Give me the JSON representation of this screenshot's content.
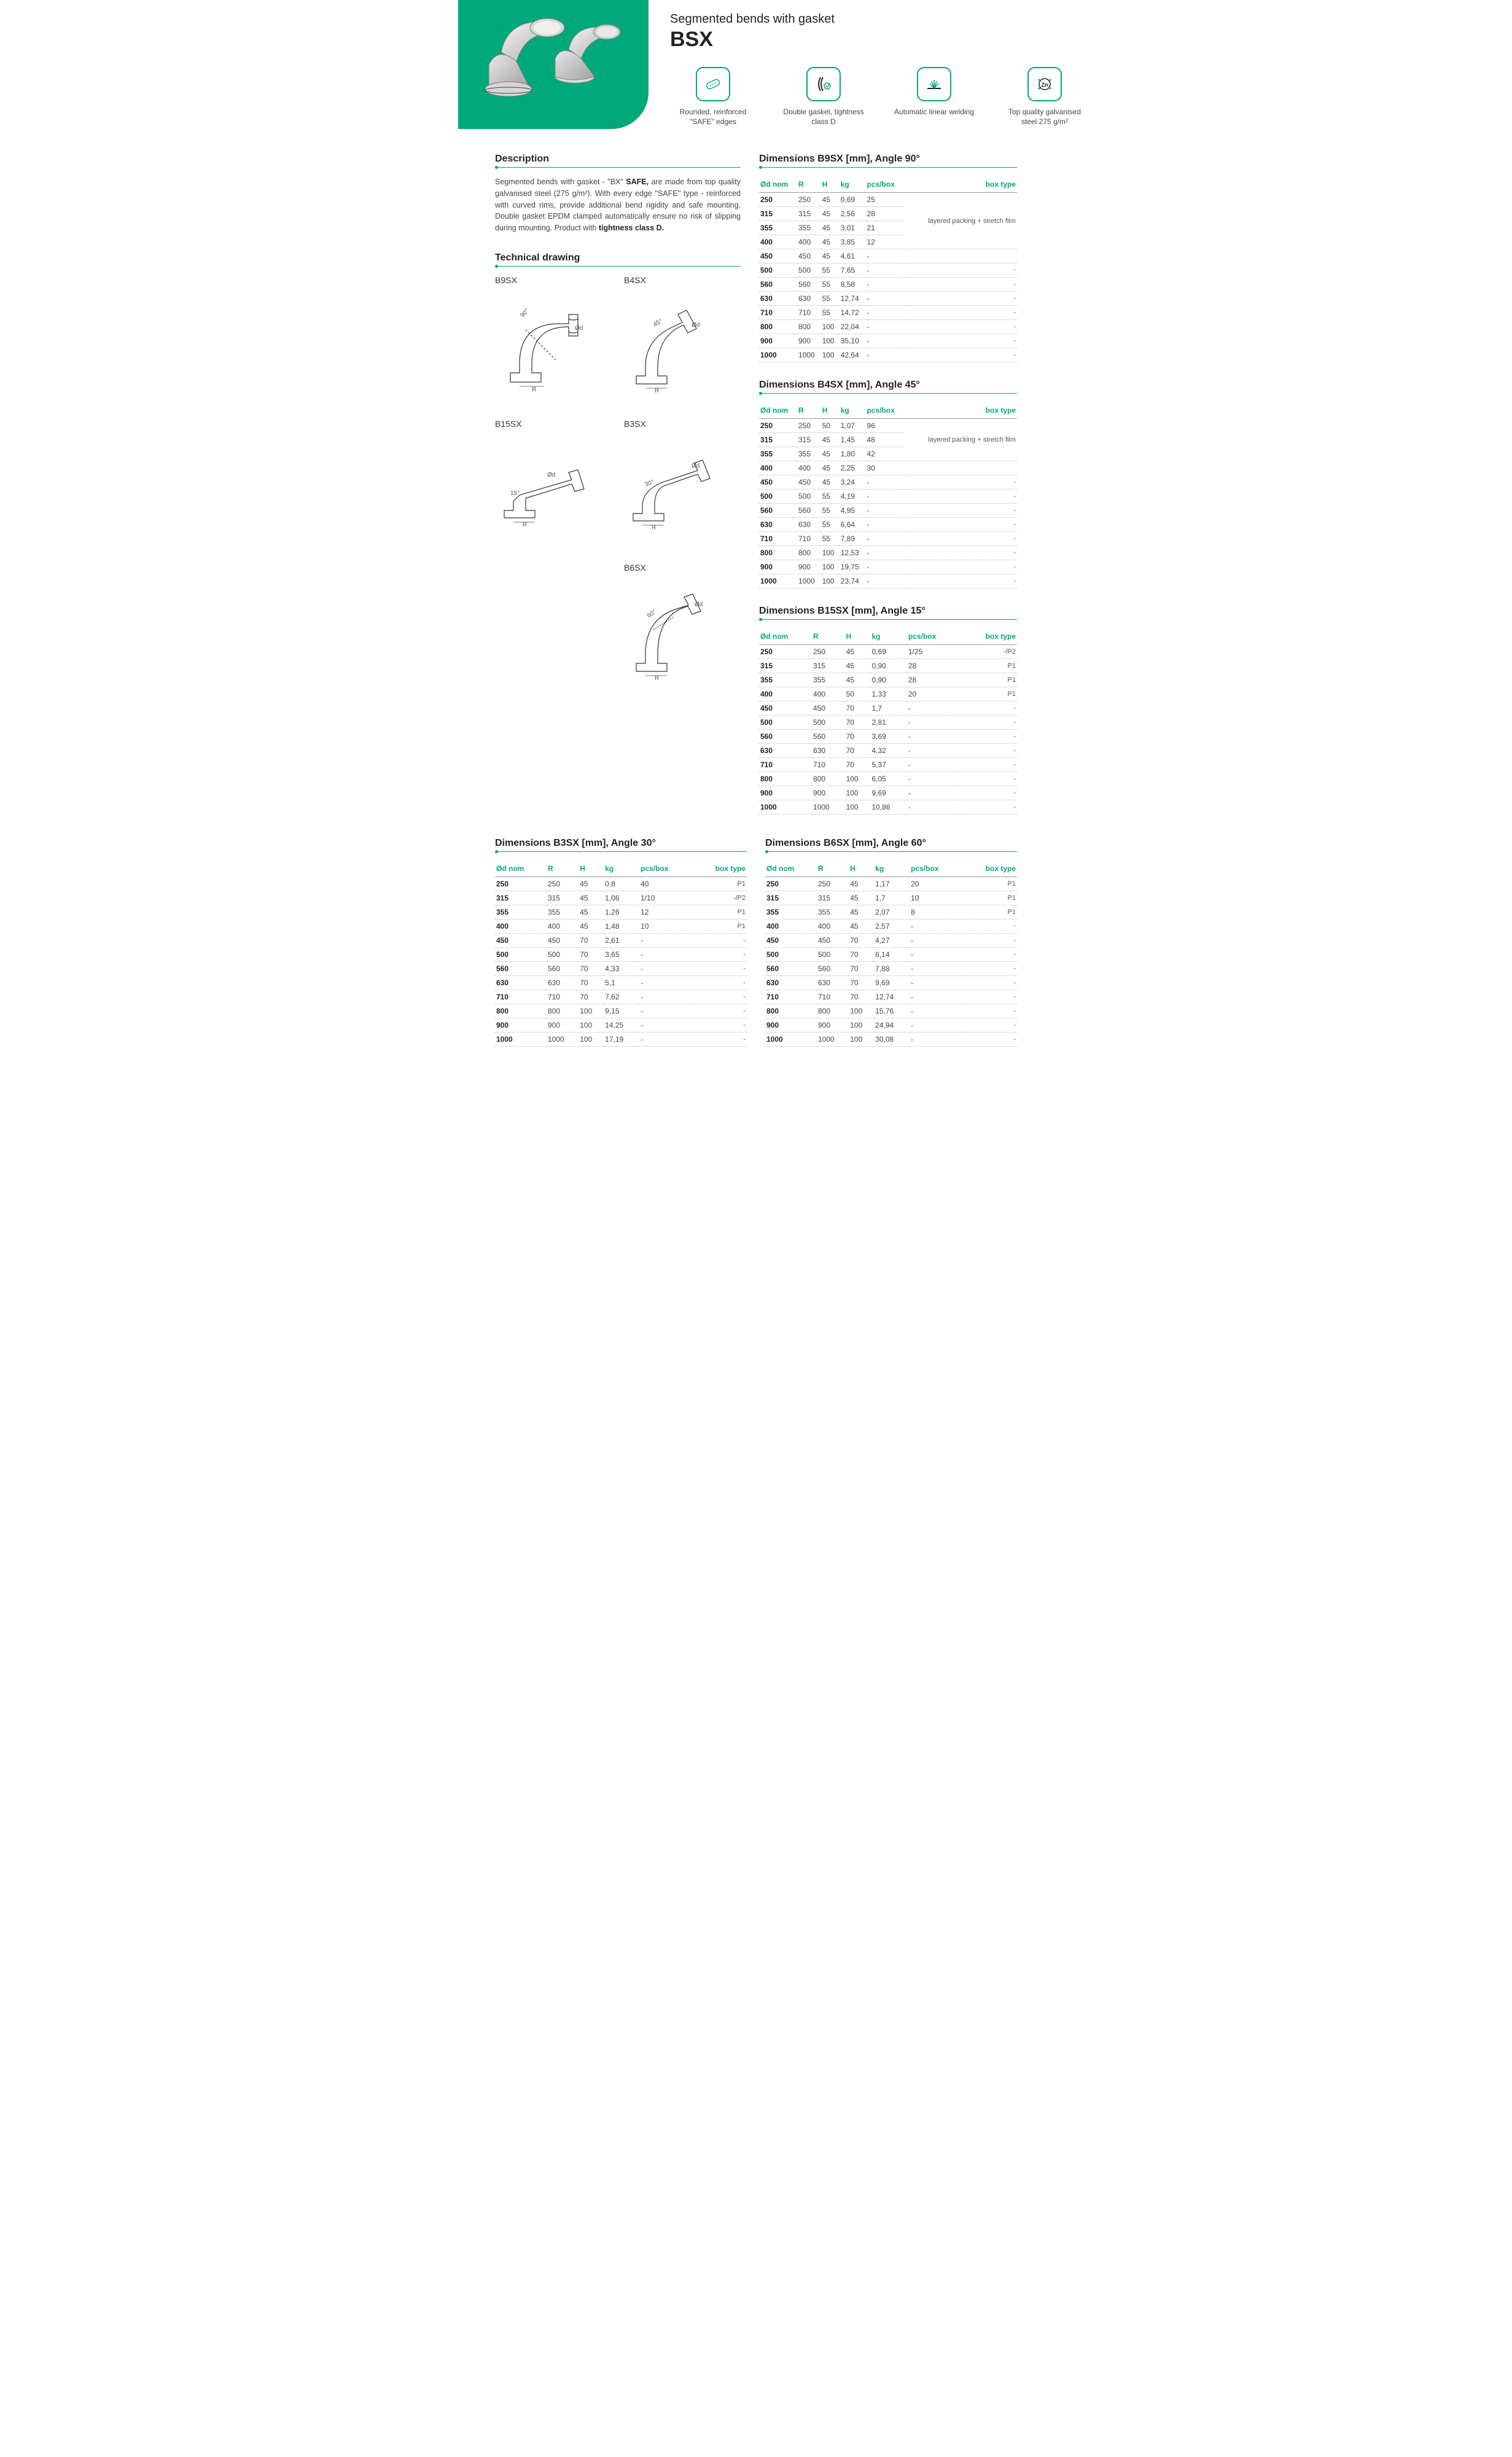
{
  "header": {
    "subtitle": "Segmented bends with gasket",
    "code": "BSX"
  },
  "features": [
    {
      "icon": "safe-edge",
      "text": "Rounded, reinforced \"SAFE\" edges"
    },
    {
      "icon": "gasket",
      "text": "Double gasket, tightness class D"
    },
    {
      "icon": "weld",
      "text": "Automatic linear welding"
    },
    {
      "icon": "zn",
      "text": "Top quality galvanised steel 275 g/m²"
    }
  ],
  "description": {
    "title": "Description",
    "body_pre": "Segmented bends with gasket - \"BX\" ",
    "body_bold1": "SAFE,",
    "body_mid": " are made from top quality galvanised steel (275 g/m²). With every edge \"SAFE'' type - reinforced with curved rims, provide additional bend rigidity and safe mounting. Double gasket EPDM clamped automatically ensure no risk of slipping during mounting. Product with ",
    "body_bold2": "tightness class D."
  },
  "tech_drawing_title": "Technical drawing",
  "drawings": [
    {
      "label": "B9SX",
      "angle": "90°"
    },
    {
      "label": "B4SX",
      "angle": "45°"
    },
    {
      "label": "B15SX",
      "angle": "15°"
    },
    {
      "label": "B3SX",
      "angle": "30°"
    },
    {
      "label": "B6SX",
      "angle": "60°"
    }
  ],
  "tables": {
    "headers": [
      "Ød nom",
      "R",
      "H",
      "kg",
      "pcs/box",
      "box type"
    ],
    "b9sx": {
      "title": "Dimensions B9SX [mm], Angle 90°",
      "box_span_text": "layered packing + stretch film",
      "rows": [
        [
          "250",
          "250",
          "45",
          "0,69",
          "25",
          ""
        ],
        [
          "315",
          "315",
          "45",
          "2,56",
          "28",
          ""
        ],
        [
          "355",
          "355",
          "45",
          "3,01",
          "21",
          ""
        ],
        [
          "400",
          "400",
          "45",
          "3,85",
          "12",
          ""
        ],
        [
          "450",
          "450",
          "45",
          "4,61",
          "-",
          ""
        ],
        [
          "500",
          "500",
          "55",
          "7,65",
          "-",
          "-"
        ],
        [
          "560",
          "560",
          "55",
          "8,58",
          "-",
          "-"
        ],
        [
          "630",
          "630",
          "55",
          "12,74",
          "-",
          "-"
        ],
        [
          "710",
          "710",
          "55",
          "14,72",
          "-",
          "-"
        ],
        [
          "800",
          "800",
          "100",
          "22,04",
          "-",
          "-"
        ],
        [
          "900",
          "900",
          "100",
          "35,10",
          "-",
          "-"
        ],
        [
          "1000",
          "1000",
          "100",
          "42,64",
          "-",
          "-"
        ]
      ]
    },
    "b4sx": {
      "title": "Dimensions B4SX [mm], Angle 45°",
      "box_span_text": "layered packing + stretch film",
      "rows": [
        [
          "250",
          "250",
          "50",
          "1,07",
          "96",
          ""
        ],
        [
          "315",
          "315",
          "45",
          "1,45",
          "48",
          ""
        ],
        [
          "355",
          "355",
          "45",
          "1,80",
          "42",
          ""
        ],
        [
          "400",
          "400",
          "45",
          "2,25",
          "30",
          ""
        ],
        [
          "450",
          "450",
          "45",
          "3,24",
          "-",
          "-"
        ],
        [
          "500",
          "500",
          "55",
          "4,19",
          "-",
          "-"
        ],
        [
          "560",
          "560",
          "55",
          "4,95",
          "-",
          "-"
        ],
        [
          "630",
          "630",
          "55",
          "6,64",
          "-",
          "-"
        ],
        [
          "710",
          "710",
          "55",
          "7,89",
          "-",
          "-"
        ],
        [
          "800",
          "800",
          "100",
          "12,53",
          "-",
          "-"
        ],
        [
          "900",
          "900",
          "100",
          "19,75",
          "-",
          "-"
        ],
        [
          "1000",
          "1000",
          "100",
          "23,74",
          "-",
          "-"
        ]
      ]
    },
    "b15sx": {
      "title": "Dimensions B15SX [mm], Angle 15°",
      "rows": [
        [
          "250",
          "250",
          "45",
          "0,69",
          "1/25",
          "-/P2"
        ],
        [
          "315",
          "315",
          "45",
          "0,90",
          "28",
          "P1"
        ],
        [
          "355",
          "355",
          "45",
          "0,90",
          "28",
          "P1"
        ],
        [
          "400",
          "400",
          "50",
          "1,33",
          "20",
          "P1"
        ],
        [
          "450",
          "450",
          "70",
          "1,7",
          "-",
          "-"
        ],
        [
          "500",
          "500",
          "70",
          "2,81",
          "-",
          "-"
        ],
        [
          "560",
          "560",
          "70",
          "3,69",
          "-",
          "-"
        ],
        [
          "630",
          "630",
          "70",
          "4,32",
          "-",
          "-"
        ],
        [
          "710",
          "710",
          "70",
          "5,37",
          "-",
          "-"
        ],
        [
          "800",
          "800",
          "100",
          "6,05",
          "-",
          "-"
        ],
        [
          "900",
          "900",
          "100",
          "9,69",
          "-",
          "-"
        ],
        [
          "1000",
          "1000",
          "100",
          "10,86",
          "-",
          "-"
        ]
      ]
    },
    "b3sx": {
      "title": "Dimensions B3SX [mm], Angle 30°",
      "rows": [
        [
          "250",
          "250",
          "45",
          "0,8",
          "40",
          "P1"
        ],
        [
          "315",
          "315",
          "45",
          "1,06",
          "1/10",
          "-/P2"
        ],
        [
          "355",
          "355",
          "45",
          "1,26",
          "12",
          "P1"
        ],
        [
          "400",
          "400",
          "45",
          "1,48",
          "10",
          "P1"
        ],
        [
          "450",
          "450",
          "70",
          "2,61",
          "-",
          "-"
        ],
        [
          "500",
          "500",
          "70",
          "3,65",
          "-",
          "-"
        ],
        [
          "560",
          "560",
          "70",
          "4,33",
          "-",
          "-"
        ],
        [
          "630",
          "630",
          "70",
          "5,1",
          "-",
          "-"
        ],
        [
          "710",
          "710",
          "70",
          "7,62",
          "-",
          "-"
        ],
        [
          "800",
          "800",
          "100",
          "9,15",
          "-",
          "-"
        ],
        [
          "900",
          "900",
          "100",
          "14,25",
          "-",
          "-"
        ],
        [
          "1000",
          "1000",
          "100",
          "17,19",
          "-",
          "-"
        ]
      ]
    },
    "b6sx": {
      "title": "Dimensions B6SX [mm], Angle 60°",
      "rows": [
        [
          "250",
          "250",
          "45",
          "1,17",
          "20",
          "P1"
        ],
        [
          "315",
          "315",
          "45",
          "1,7",
          "10",
          "P1"
        ],
        [
          "355",
          "355",
          "45",
          "2,07",
          "8",
          "P1"
        ],
        [
          "400",
          "400",
          "45",
          "2,57",
          "-",
          "-"
        ],
        [
          "450",
          "450",
          "70",
          "4,27",
          "-",
          "-"
        ],
        [
          "500",
          "500",
          "70",
          "6,14",
          "-",
          "-"
        ],
        [
          "560",
          "560",
          "70",
          "7,88",
          "-",
          "-"
        ],
        [
          "630",
          "630",
          "70",
          "9,69",
          "-",
          "-"
        ],
        [
          "710",
          "710",
          "70",
          "12,74",
          "-",
          "-"
        ],
        [
          "800",
          "800",
          "100",
          "15,76",
          "-",
          "-"
        ],
        [
          "900",
          "900",
          "100",
          "24,94",
          "-",
          "-"
        ],
        [
          "1000",
          "1000",
          "100",
          "30,08",
          "-",
          "-"
        ]
      ]
    }
  },
  "colors": {
    "accent": "#00a97a"
  }
}
